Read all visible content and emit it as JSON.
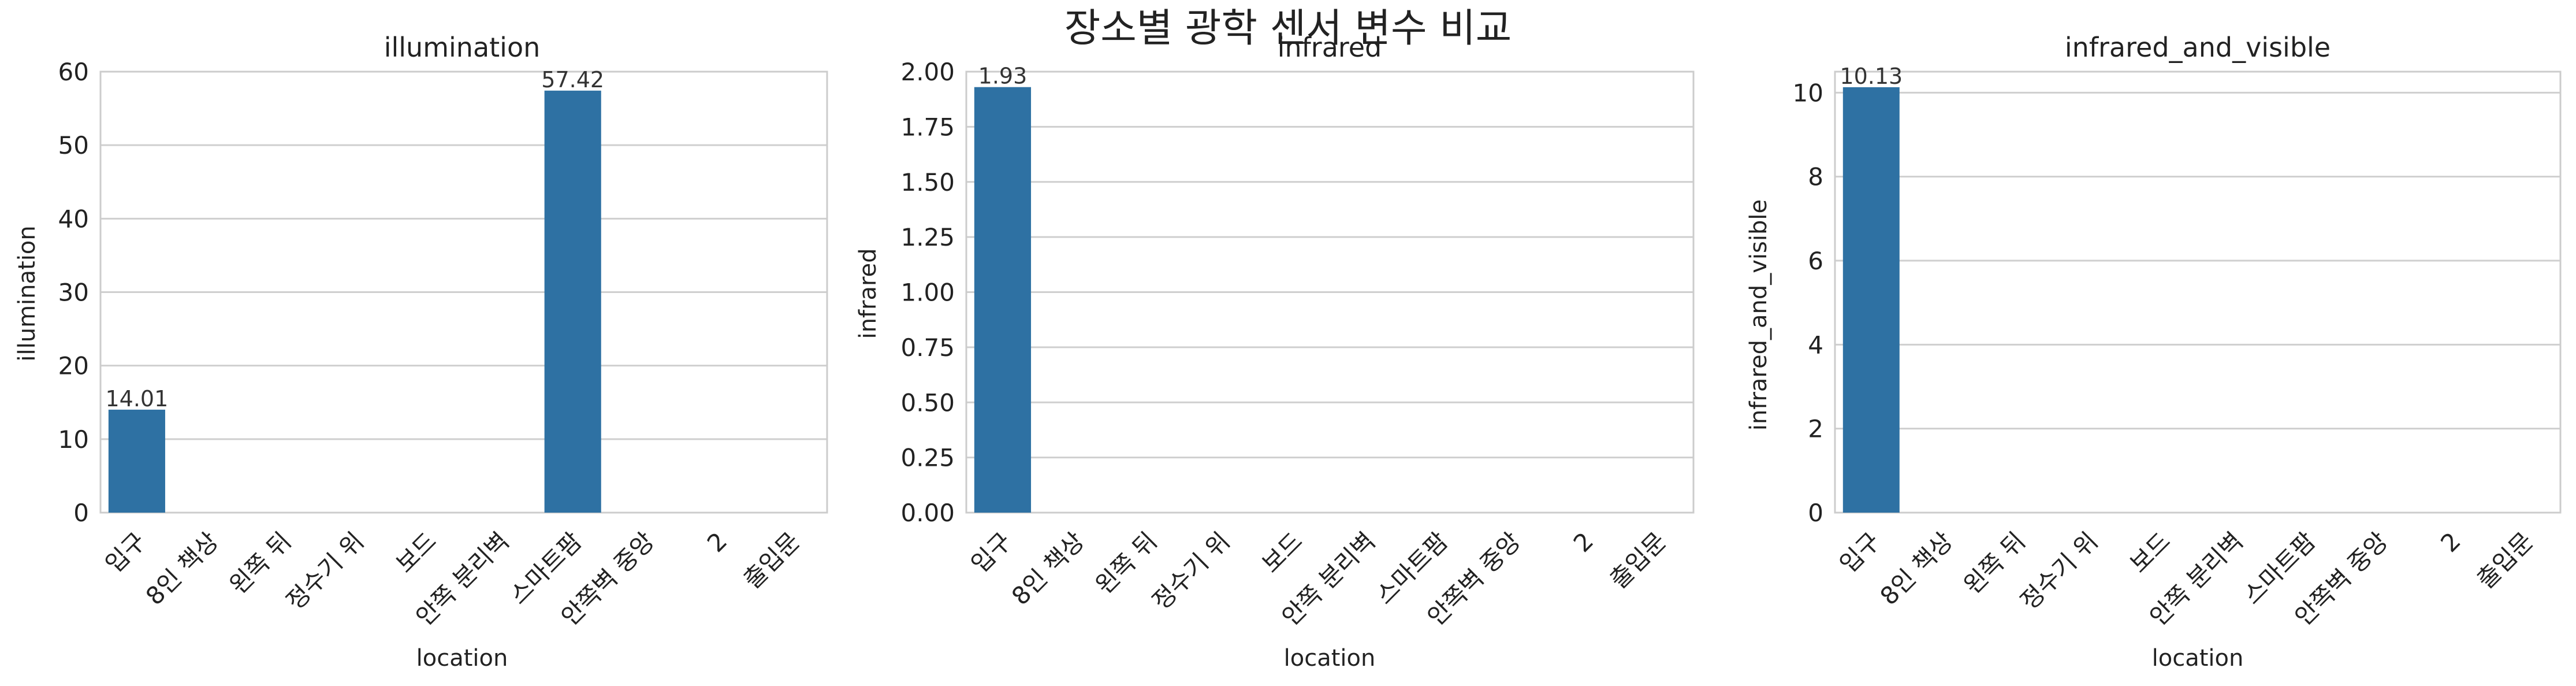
{
  "chart_data": {
    "suptitle": "장소별 광학 센서 변수 비교",
    "bar_color": "#2e71a3",
    "grid": true,
    "categories": [
      "입구",
      "8인 책상",
      "왼쪽 뒤",
      "정수기 위",
      "보드",
      "안쪽 분리벽",
      "스마트팜",
      "안쪽벽 중앙",
      "2",
      "출입문"
    ],
    "charts": [
      {
        "type": "bar",
        "title": "illumination",
        "xlabel": "location",
        "ylabel": "illumination",
        "ylim": [
          0,
          60
        ],
        "yticks": [
          0,
          10,
          20,
          30,
          40,
          50,
          60
        ],
        "tick_decimals": 0,
        "values": [
          14.01,
          null,
          null,
          null,
          null,
          null,
          57.42,
          null,
          null,
          null
        ]
      },
      {
        "type": "bar",
        "title": "infrared",
        "xlabel": "location",
        "ylabel": "infrared",
        "ylim": [
          0,
          2.0
        ],
        "yticks": [
          0,
          0.25,
          0.5,
          0.75,
          1.0,
          1.25,
          1.5,
          1.75,
          2.0
        ],
        "tick_decimals": 2,
        "values": [
          1.93,
          null,
          null,
          null,
          null,
          null,
          null,
          null,
          null,
          null
        ]
      },
      {
        "type": "bar",
        "title": "infrared_and_visible",
        "xlabel": "location",
        "ylabel": "infrared_and_visible",
        "ylim": [
          0,
          10.5
        ],
        "yticks": [
          0,
          2,
          4,
          6,
          8,
          10
        ],
        "tick_decimals": 0,
        "values": [
          10.13,
          null,
          null,
          null,
          null,
          null,
          null,
          null,
          null,
          null
        ]
      }
    ]
  }
}
